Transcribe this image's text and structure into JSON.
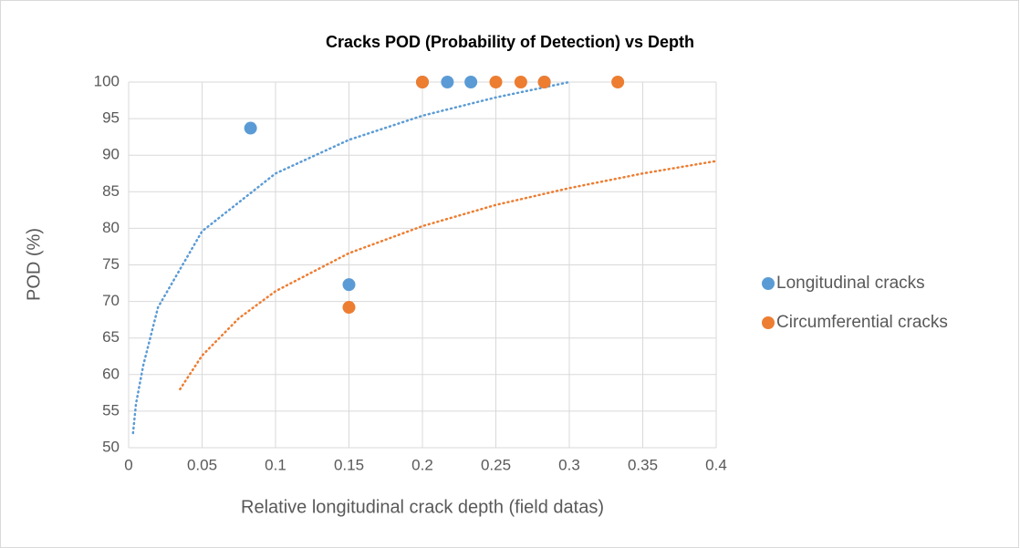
{
  "chart_data": {
    "type": "scatter",
    "title": "Cracks POD (Probability of Detection) vs Depth",
    "xlabel": "Relative longitudinal crack depth (field datas)",
    "ylabel": "POD (%)",
    "xlim": [
      0,
      0.4
    ],
    "ylim": [
      50,
      100
    ],
    "xticks": [
      0,
      0.05,
      0.1,
      0.15,
      0.2,
      0.25,
      0.3,
      0.35,
      0.4
    ],
    "yticks": [
      50,
      55,
      60,
      65,
      70,
      75,
      80,
      85,
      90,
      95,
      100
    ],
    "grid": true,
    "legend": "right",
    "series": [
      {
        "name": "Longitudinal cracks",
        "color": "#5b9bd5",
        "x": [
          0.083,
          0.15,
          0.2,
          0.217,
          0.233,
          0.283
        ],
        "values": [
          93.7,
          72.3,
          100,
          100,
          100,
          100
        ],
        "trendline": {
          "type": "log",
          "x": [
            0.003,
            0.005,
            0.01,
            0.02,
            0.05,
            0.1,
            0.15,
            0.2,
            0.25,
            0.3
          ],
          "values": [
            52,
            56,
            61.3,
            69.2,
            79.6,
            87.5,
            92.1,
            95.4,
            97.9,
            100
          ]
        }
      },
      {
        "name": "Circumferential cracks",
        "color": "#ed7d31",
        "x": [
          0.15,
          0.2,
          0.25,
          0.267,
          0.283,
          0.333
        ],
        "values": [
          69.2,
          100,
          100,
          100,
          100,
          100
        ],
        "trendline": {
          "type": "log",
          "x": [
            0.035,
            0.05,
            0.075,
            0.1,
            0.15,
            0.2,
            0.25,
            0.3,
            0.35,
            0.4
          ],
          "values": [
            58.0,
            62.6,
            67.7,
            71.4,
            76.6,
            80.3,
            83.2,
            85.5,
            87.5,
            89.2
          ]
        }
      }
    ]
  }
}
